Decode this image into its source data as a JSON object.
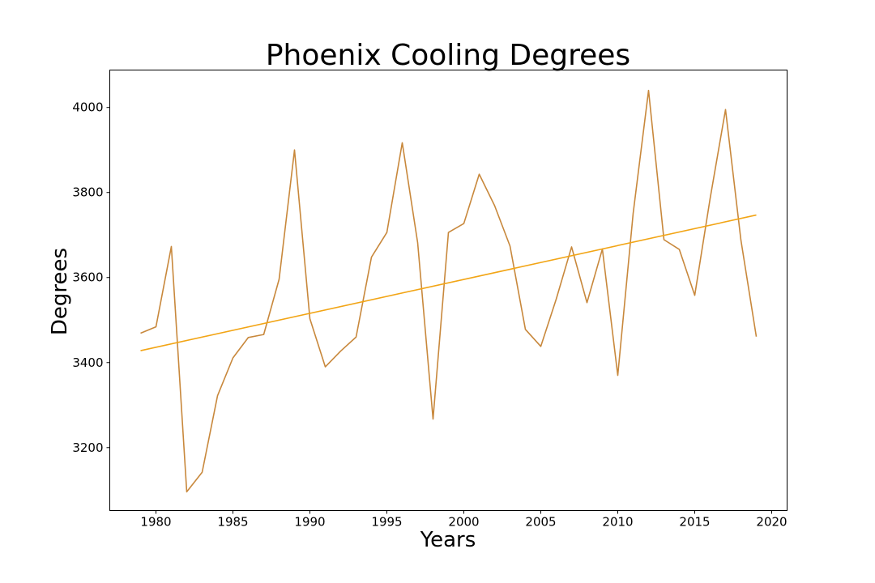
{
  "chart_data": {
    "type": "line",
    "title": "Phoenix Cooling Degrees",
    "xlabel": "Years",
    "ylabel": "Degrees",
    "xlim": [
      1977,
      2021
    ],
    "ylim": [
      3052,
      4088
    ],
    "x_ticks": [
      1980,
      1985,
      1990,
      1995,
      2000,
      2005,
      2010,
      2015,
      2020
    ],
    "y_ticks": [
      3200,
      3400,
      3600,
      3800,
      4000
    ],
    "grid": false,
    "colors": {
      "data_line": "#c8883c",
      "trend_line": "#f2a516"
    },
    "series": [
      {
        "x": [
          1979,
          1980,
          1981,
          1982,
          1983,
          1984,
          1985,
          1986,
          1987,
          1988,
          1989,
          1990,
          1991,
          1992,
          1993,
          1994,
          1995,
          1996,
          1997,
          1998,
          1999,
          2000,
          2001,
          2002,
          2003,
          2004,
          2005,
          2006,
          2007,
          2008,
          2009,
          2010,
          2011,
          2012,
          2013,
          2014,
          2015,
          2016,
          2017,
          2018,
          2019
        ],
        "values": [
          3469,
          3484,
          3673,
          3096,
          3142,
          3322,
          3411,
          3459,
          3466,
          3596,
          3900,
          3503,
          3390,
          3427,
          3460,
          3648,
          3706,
          3917,
          3682,
          3267,
          3706,
          3727,
          3843,
          3769,
          3674,
          3478,
          3438,
          3549,
          3672,
          3541,
          3667,
          3370,
          3751,
          4040,
          3689,
          3666,
          3558,
          3786,
          3995,
          3688,
          3461
        ]
      },
      {
        "x": [
          1979,
          2019
        ],
        "values": [
          3428,
          3747
        ]
      }
    ]
  }
}
